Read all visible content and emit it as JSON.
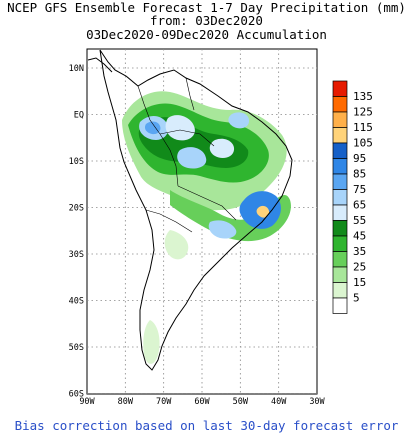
{
  "header": {
    "line1": "NCEP GFS Ensemble Forecast 1-7 Day Precipitation (mm)",
    "line2": "from: 03Dec2020",
    "line3": "03Dec2020-09Dec2020 Accumulation"
  },
  "map": {
    "lat_labels": [
      "10N",
      "EQ",
      "10S",
      "20S",
      "30S",
      "40S",
      "50S",
      "60S"
    ],
    "lon_labels": [
      "90W",
      "80W",
      "70W",
      "60W",
      "50W",
      "40W",
      "30W"
    ],
    "lat_range": [
      -60,
      15
    ],
    "lon_range": [
      -90,
      -30
    ]
  },
  "legend": {
    "labels": [
      "135",
      "125",
      "115",
      "105",
      "95",
      "85",
      "75",
      "65",
      "55",
      "45",
      "35",
      "25",
      "15",
      "5"
    ],
    "colors": [
      "#e61a00",
      "#ff6a00",
      "#ffb04a",
      "#ffd37a",
      "#1560c8",
      "#2f86e6",
      "#5aa6f2",
      "#a8d4fa",
      "#d8ecfc",
      "#118a1a",
      "#2fb52f",
      "#67cf5a",
      "#a8e69a",
      "#dbf5d0",
      "#ffffff"
    ]
  },
  "footer": "Bias correction based on last 30-day forecast error"
}
